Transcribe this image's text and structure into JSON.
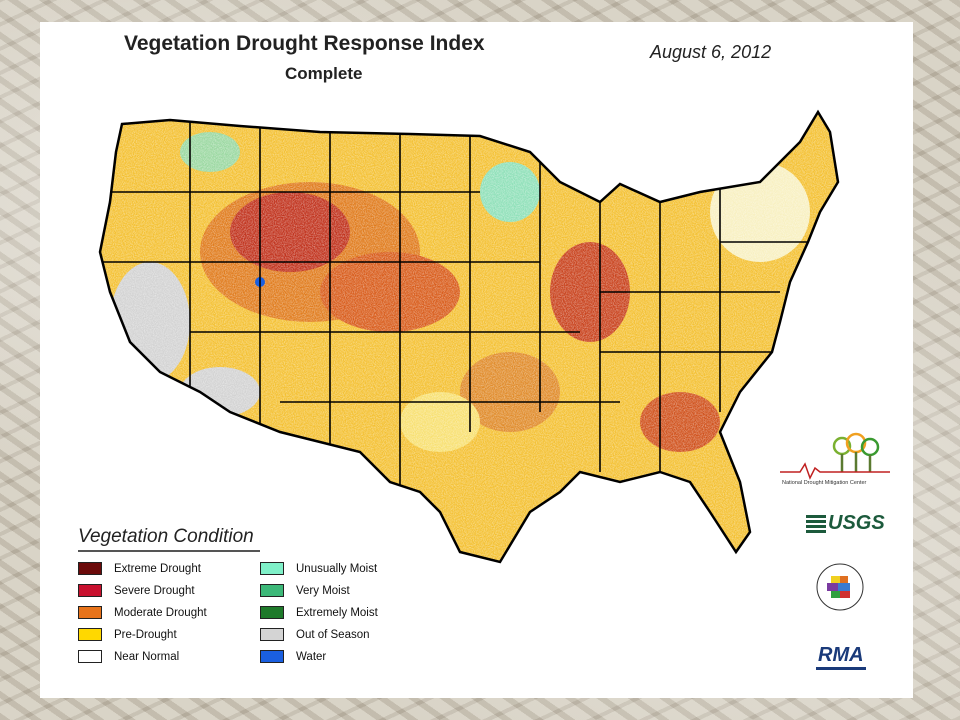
{
  "title": "Vegetation Drought Response Index",
  "subtitle": "Complete",
  "date": "August 6, 2012",
  "legend": {
    "title": "Vegetation Condition",
    "items": [
      {
        "label": "Extreme Drought",
        "color": "#6b0a0a"
      },
      {
        "label": "Severe Drought",
        "color": "#c8102e"
      },
      {
        "label": "Moderate Drought",
        "color": "#e8731a"
      },
      {
        "label": "Pre-Drought",
        "color": "#ffd800"
      },
      {
        "label": "Near Normal",
        "color": "#ffffff"
      },
      {
        "label": "Unusually Moist",
        "color": "#7ff0c8"
      },
      {
        "label": "Very Moist",
        "color": "#3cb878"
      },
      {
        "label": "Extremely Moist",
        "color": "#1e7a2a"
      },
      {
        "label": "Out of Season",
        "color": "#d4d4d4"
      },
      {
        "label": "Water",
        "color": "#1a5fe0"
      }
    ]
  },
  "logos": {
    "ndmc_text": "National Drought Mitigation Center",
    "usgs_text": "USGS",
    "rma_text": "RMA"
  }
}
